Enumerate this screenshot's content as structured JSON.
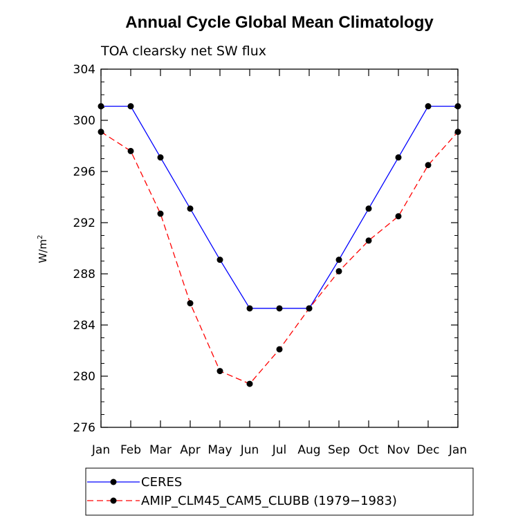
{
  "chart_data": {
    "type": "line",
    "title": "Annual Cycle Global Mean Climatology",
    "subtitle": "TOA clearsky net SW flux",
    "xlabel": "",
    "ylabel": "W/m",
    "ylabel_superscript": "2",
    "categories": [
      "Jan",
      "Feb",
      "Mar",
      "Apr",
      "May",
      "Jun",
      "Jul",
      "Aug",
      "Sep",
      "Oct",
      "Nov",
      "Dec",
      "Jan"
    ],
    "ylim": [
      276,
      304
    ],
    "yticks": [
      276,
      280,
      284,
      288,
      292,
      296,
      300,
      304
    ],
    "series": [
      {
        "name": "CERES",
        "color": "#0000ff",
        "dash": "solid",
        "values": [
          301.1,
          301.1,
          297.1,
          293.1,
          289.1,
          285.3,
          285.3,
          285.3,
          289.1,
          293.1,
          297.1,
          301.1,
          301.1
        ]
      },
      {
        "name": "AMIP_CLM45_CAM5_CLUBB (1979−1983)",
        "color": "#ff0000",
        "dash": "dashed",
        "values": [
          299.1,
          297.6,
          292.7,
          285.7,
          280.4,
          279.4,
          282.1,
          285.3,
          288.2,
          290.6,
          292.5,
          296.5,
          299.1
        ]
      }
    ],
    "grid": false,
    "legend_position": "bottom"
  }
}
